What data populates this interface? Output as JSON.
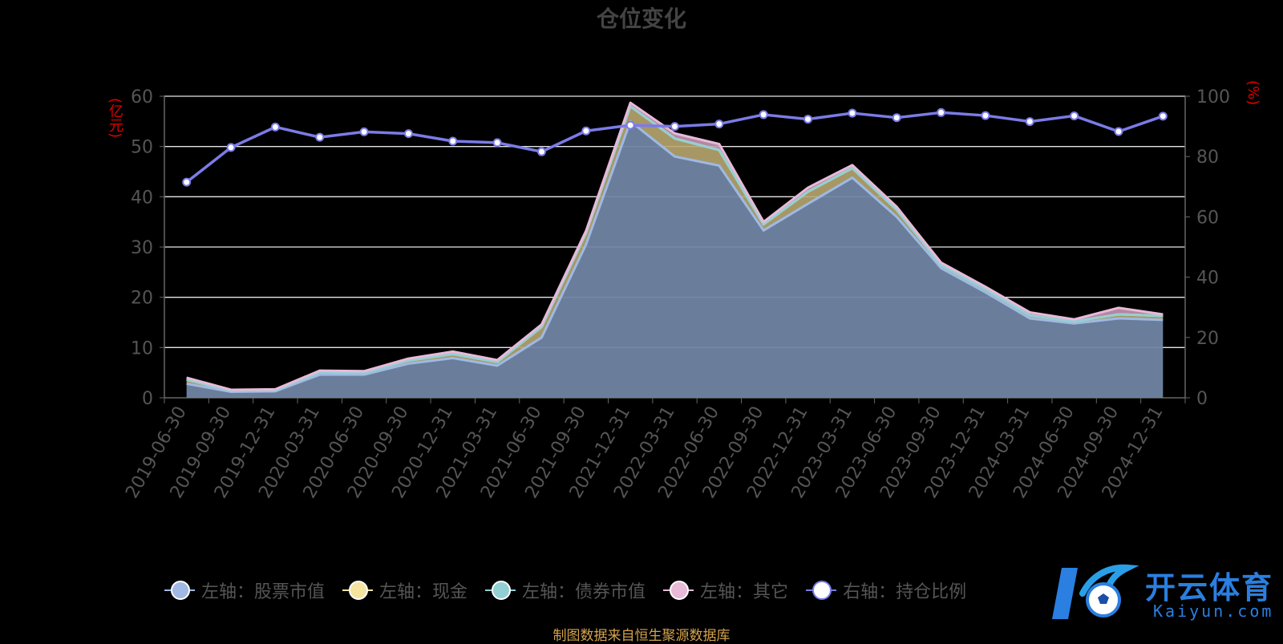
{
  "title": "仓位变化",
  "ylabel_left": "(亿元)",
  "ylabel_right": "(%)",
  "source_note": "制图数据来自恒生聚源数据库",
  "watermark": {
    "text": "开云体育",
    "sub": "Kaiyun.com"
  },
  "legend": [
    {
      "label": "左轴：股票市值",
      "color": "#9fb9e4"
    },
    {
      "label": "左轴：现金",
      "color": "#f5e3a0"
    },
    {
      "label": "左轴：债券市值",
      "color": "#93d0d4"
    },
    {
      "label": "左轴：其它",
      "color": "#e9b9d8"
    },
    {
      "label": "右轴：持仓比例",
      "color": "#7b7be8"
    }
  ],
  "chart_data": {
    "type": "area",
    "categories": [
      "2019-06-30",
      "2019-09-30",
      "2019-12-31",
      "2020-03-31",
      "2020-06-30",
      "2020-09-30",
      "2020-12-31",
      "2021-03-31",
      "2021-06-30",
      "2021-09-30",
      "2021-12-31",
      "2022-03-31",
      "2022-06-30",
      "2022-09-30",
      "2022-12-31",
      "2023-03-31",
      "2023-06-30",
      "2023-09-30",
      "2023-12-31",
      "2024-03-31",
      "2024-06-30",
      "2024-09-30",
      "2024-12-31"
    ],
    "ylim_left": [
      0,
      60
    ],
    "yticks_left": [
      0,
      10,
      20,
      30,
      40,
      50,
      60
    ],
    "ylim_right": [
      0,
      100
    ],
    "yticks_right": [
      0,
      20,
      40,
      60,
      80,
      100
    ],
    "grid": true,
    "legend_position": "bottom",
    "series": [
      {
        "name": "左轴：股票市值",
        "axis": "left",
        "stack": true,
        "color": "#9fb9e4",
        "values": [
          2.8,
          1.2,
          1.3,
          4.6,
          4.6,
          6.8,
          7.9,
          6.4,
          12.0,
          30.5,
          55.0,
          48.0,
          46.2,
          33.3,
          38.6,
          43.8,
          36.0,
          25.8,
          21.0,
          15.8,
          14.8,
          15.8,
          15.5
        ]
      },
      {
        "name": "左轴：现金",
        "axis": "left",
        "stack": true,
        "color": "#f5e3a0",
        "values": [
          0.8,
          0.2,
          0.2,
          0.5,
          0.4,
          0.6,
          0.8,
          0.7,
          2.1,
          2.3,
          3.0,
          3.6,
          3.1,
          1.2,
          2.4,
          1.9,
          1.4,
          0.6,
          0.6,
          0.6,
          0.4,
          0.8,
          0.8
        ]
      },
      {
        "name": "左轴：债券市值",
        "axis": "left",
        "stack": true,
        "color": "#93d0d4",
        "values": [
          0,
          0,
          0,
          0,
          0,
          0,
          0,
          0,
          0,
          0,
          0,
          0,
          0,
          0,
          0,
          0,
          0,
          0,
          0,
          0,
          0,
          0,
          0
        ]
      },
      {
        "name": "左轴：其它",
        "axis": "left",
        "stack": true,
        "color": "#e9b9d8",
        "values": [
          0.4,
          0.2,
          0.2,
          0.3,
          0.3,
          0.4,
          0.5,
          0.4,
          0.5,
          0.4,
          0.7,
          1.0,
          1.2,
          0.5,
          0.8,
          0.6,
          0.6,
          0.5,
          0.5,
          0.6,
          0.4,
          1.3,
          0.3
        ]
      },
      {
        "name": "右轴：持仓比例",
        "axis": "right",
        "type": "line",
        "color": "#7b7be8",
        "values": [
          71.5,
          83.0,
          89.8,
          86.4,
          88.2,
          87.6,
          85.1,
          84.6,
          81.6,
          88.5,
          90.4,
          90.0,
          90.8,
          93.9,
          92.4,
          94.4,
          92.9,
          94.6,
          93.6,
          91.6,
          93.5,
          88.3,
          93.4
        ]
      }
    ]
  }
}
